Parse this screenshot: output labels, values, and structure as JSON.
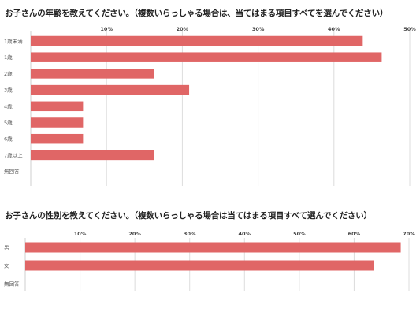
{
  "chart_data": [
    {
      "type": "bar",
      "orientation": "horizontal",
      "title": "お子さんの年齢を教えてください。（複数いらっしゃる場合は、当てはまる項目すべてを選んでください）",
      "categories": [
        "1歳未満",
        "1歳",
        "2歳",
        "3歳",
        "4歳",
        "5歳",
        "6歳",
        "7歳以上",
        "無回答"
      ],
      "values": [
        43.8,
        46.3,
        16.3,
        20.9,
        6.9,
        6.9,
        6.9,
        16.3,
        0
      ],
      "xlim": [
        0,
        50
      ],
      "xticks": [
        10,
        20,
        30,
        40,
        50
      ],
      "tick_suffix": "%",
      "grid": true,
      "bar_color": "#e06666",
      "xlabel": "",
      "ylabel": ""
    },
    {
      "type": "bar",
      "orientation": "horizontal",
      "title": "お子さんの性別を教えてください。（複数いらっしゃる場合は当てはまる項目すべて選んでください）",
      "categories": [
        "男",
        "女",
        "無回答"
      ],
      "values": [
        68.5,
        63.6,
        0
      ],
      "xlim": [
        0,
        70
      ],
      "xticks": [
        10,
        20,
        30,
        40,
        50,
        60,
        70
      ],
      "tick_suffix": "%",
      "grid": true,
      "bar_color": "#e06666",
      "xlabel": "",
      "ylabel": ""
    }
  ]
}
